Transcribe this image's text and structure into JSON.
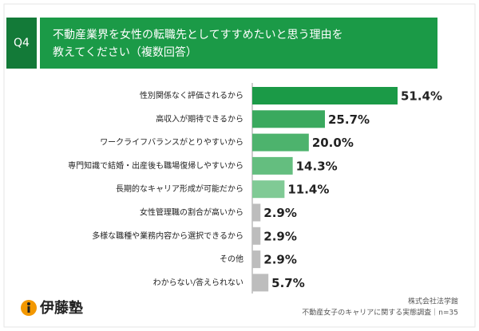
{
  "chart_data": {
    "type": "bar",
    "orientation": "horizontal",
    "question_number": "Q4",
    "title": [
      "不動産業界を女性の転職先としてすすめたいと思う理由を",
      "教えてください（複数回答）"
    ],
    "categories": [
      "性別関係なく評価されるから",
      "高収入が期待できるから",
      "ワークライフバランスがとりやすいから",
      "専門知識で結婚・出産後も職場復帰しやすいから",
      "長期的なキャリア形成が可能だから",
      "女性管理職の割合が高いから",
      "多様な職種や業務内容から選択できるから",
      "その他",
      "わからない/答えられない"
    ],
    "values": [
      51.4,
      25.7,
      20.0,
      14.3,
      11.4,
      2.9,
      2.9,
      2.9,
      5.7
    ],
    "value_labels": [
      "51.4%",
      "25.7%",
      "20.0%",
      "14.3%",
      "11.4%",
      "2.9%",
      "2.9%",
      "2.9%",
      "5.7%"
    ],
    "colors": [
      "#1b9a47",
      "#3aa95e",
      "#4db36d",
      "#64be7f",
      "#80ca95",
      "#bdbdbd",
      "#bdbdbd",
      "#bdbdbd",
      "#bdbdbd"
    ],
    "logo": "伊藤塾",
    "source": [
      "株式会社法学館",
      "不動産女子のキャリアに関する実態調査｜n=35"
    ]
  }
}
